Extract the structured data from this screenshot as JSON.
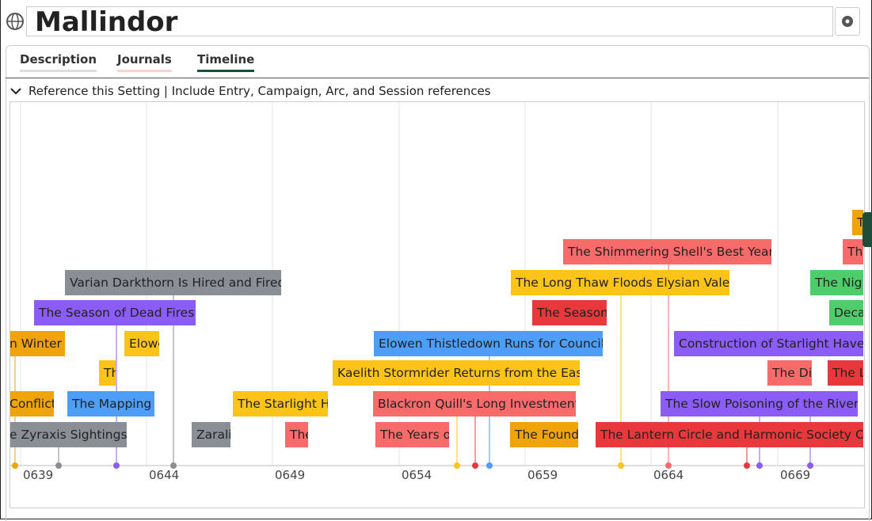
{
  "header": {
    "title": "Mallindor"
  },
  "tabs": [
    "Description",
    "Journals",
    "Timeline"
  ],
  "reference": {
    "label": "Reference this Setting | Include Entry, Campaign, Arc, and Session references"
  },
  "timeline": {
    "ticks": [
      "0639",
      "0644",
      "0649",
      "0654",
      "0659",
      "0664",
      "0669"
    ],
    "events": [
      "e Zyraxis Sightings",
      "Zarali",
      "The",
      "The Years o",
      "The Found",
      "The Lantern Circle and Harmonic Society Co",
      "Conflict",
      "The Mapping",
      "The Starlight Ha",
      "Blackron Quill's Long Investment",
      "The Slow Poisoning of the River",
      "Th",
      "Kaelith Stormrider Returns from the East",
      "The Di",
      "The L",
      "n Winter",
      "Elowe",
      "Elowen Thistledown Runs for Council",
      "Construction of Starlight Haven",
      "The Season of Dead Fires",
      "The Season",
      "Deca",
      "Varian Darkthorn Is Hired and Fired",
      "The Long Thaw Floods Elysian Vale",
      "The Nigh",
      "The Shimmering Shell's Best Year",
      "Th",
      "T"
    ]
  }
}
